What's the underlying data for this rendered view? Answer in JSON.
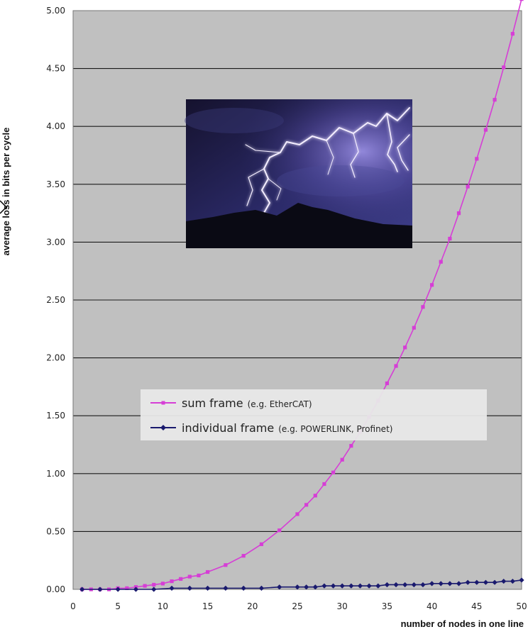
{
  "chart_data": {
    "type": "line",
    "title": "",
    "xlabel": "number of nodes in one line",
    "ylabel": "average loss in bits per cycle",
    "xlim": [
      0,
      50
    ],
    "ylim": [
      0,
      5
    ],
    "xticks": [
      "0",
      "5",
      "10",
      "15",
      "20",
      "25",
      "30",
      "35",
      "40",
      "45",
      "50"
    ],
    "yticks": [
      "0.00",
      "0.50",
      "1.00",
      "1.50",
      "2.00",
      "2.50",
      "3.00",
      "3.50",
      "4.00",
      "4.50",
      "5.00"
    ],
    "grid": "horizontal",
    "background_color": "#c0c0c0",
    "legend_position": "center",
    "series": [
      {
        "name": "sum frame",
        "name_note": "(e.g. EtherCAT)",
        "color": "#d63ed6",
        "marker": "square",
        "x": [
          1,
          2,
          3,
          4,
          5,
          6,
          7,
          8,
          9,
          10,
          11,
          12,
          13,
          14,
          15,
          17,
          19,
          21,
          23,
          25,
          26,
          27,
          28,
          29,
          30,
          31,
          32,
          33,
          34,
          35,
          36,
          37,
          38,
          39,
          40,
          41,
          42,
          43,
          44,
          45,
          46,
          47,
          48,
          49,
          50
        ],
        "values": [
          0.0,
          0.0,
          0.0,
          0.0,
          0.01,
          0.01,
          0.02,
          0.03,
          0.04,
          0.05,
          0.07,
          0.09,
          0.11,
          0.12,
          0.15,
          0.21,
          0.29,
          0.39,
          0.51,
          0.65,
          0.73,
          0.81,
          0.91,
          1.01,
          1.12,
          1.24,
          1.36,
          1.49,
          1.63,
          1.78,
          1.93,
          2.09,
          2.26,
          2.44,
          2.63,
          2.83,
          3.03,
          3.25,
          3.48,
          3.72,
          3.97,
          4.23,
          4.51,
          4.8,
          5.1
        ]
      },
      {
        "name": "individual frame",
        "name_note": "(e.g. POWERLINK, Profinet)",
        "color": "#1a1a6e",
        "marker": "diamond",
        "x": [
          1,
          3,
          5,
          7,
          9,
          11,
          13,
          15,
          17,
          19,
          21,
          23,
          25,
          26,
          27,
          28,
          29,
          30,
          31,
          32,
          33,
          34,
          35,
          36,
          37,
          38,
          39,
          40,
          41,
          42,
          43,
          44,
          45,
          46,
          47,
          48,
          49,
          50
        ],
        "values": [
          0.0,
          0.0,
          0.0,
          0.0,
          0.0,
          0.01,
          0.01,
          0.01,
          0.01,
          0.01,
          0.01,
          0.02,
          0.02,
          0.02,
          0.02,
          0.03,
          0.03,
          0.03,
          0.03,
          0.03,
          0.03,
          0.03,
          0.04,
          0.04,
          0.04,
          0.04,
          0.04,
          0.05,
          0.05,
          0.05,
          0.05,
          0.06,
          0.06,
          0.06,
          0.06,
          0.07,
          0.07,
          0.08
        ]
      }
    ]
  },
  "photo": {
    "subject": "lightning storm over dark mountain",
    "colors": {
      "sky_top": "#15122e",
      "sky_mid": "#2a2a6a",
      "glow": "#8a7ad8",
      "bolt": "#f4eeff",
      "mountain": "#0a0a14"
    }
  },
  "frame_color": "#000000"
}
